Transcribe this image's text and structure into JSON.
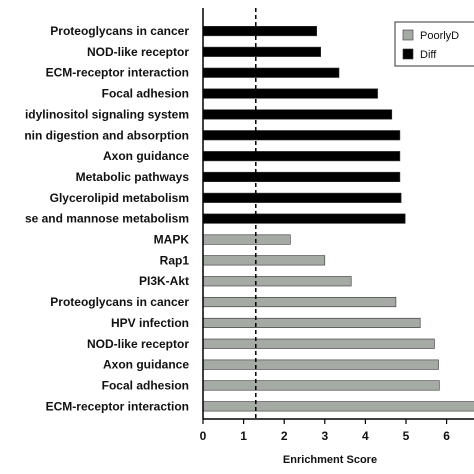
{
  "chart_data": {
    "type": "bar",
    "orientation": "horizontal",
    "xlabel": "Enrichment Score",
    "ylabel": "",
    "xlim": [
      0,
      7
    ],
    "xticks": [
      "0",
      "1",
      "2",
      "3",
      "4",
      "5",
      "6"
    ],
    "threshold_line": 1.3,
    "legend": {
      "placement": "top-right",
      "entries": [
        {
          "name": "PoorlyD",
          "color": "#a6aaa5"
        },
        {
          "name": "Diff",
          "color": "#000000"
        }
      ]
    },
    "bars": [
      {
        "label": "Proteoglycans in cancer",
        "value": 2.8,
        "series": "Diff"
      },
      {
        "label": "NOD-like receptor",
        "value": 2.9,
        "series": "Diff"
      },
      {
        "label": "ECM-receptor interaction",
        "value": 3.35,
        "series": "Diff"
      },
      {
        "label": "Focal adhesion",
        "value": 4.3,
        "series": "Diff"
      },
      {
        "label": "idylinositol signaling system",
        "value": 4.65,
        "series": "Diff"
      },
      {
        "label": "nin digestion and absorption",
        "value": 4.85,
        "series": "Diff"
      },
      {
        "label": "Axon guidance",
        "value": 4.85,
        "series": "Diff"
      },
      {
        "label": "Metabolic pathways",
        "value": 4.85,
        "series": "Diff"
      },
      {
        "label": "Glycerolipid metabolism",
        "value": 4.88,
        "series": "Diff"
      },
      {
        "label": "se and mannose metabolism",
        "value": 4.98,
        "series": "Diff"
      },
      {
        "label": "MAPK",
        "value": 2.15,
        "series": "PoorlyD"
      },
      {
        "label": "Rap1",
        "value": 3.0,
        "series": "PoorlyD"
      },
      {
        "label": "PI3K-Akt",
        "value": 3.65,
        "series": "PoorlyD"
      },
      {
        "label": "Proteoglycans in cancer",
        "value": 4.75,
        "series": "PoorlyD"
      },
      {
        "label": "HPV infection",
        "value": 5.35,
        "series": "PoorlyD"
      },
      {
        "label": "NOD-like receptor",
        "value": 5.7,
        "series": "PoorlyD"
      },
      {
        "label": "Axon guidance",
        "value": 5.8,
        "series": "PoorlyD"
      },
      {
        "label": "Focal adhesion",
        "value": 5.82,
        "series": "PoorlyD"
      },
      {
        "label": "ECM-receptor interaction",
        "value": 7.0,
        "series": "PoorlyD"
      }
    ]
  }
}
